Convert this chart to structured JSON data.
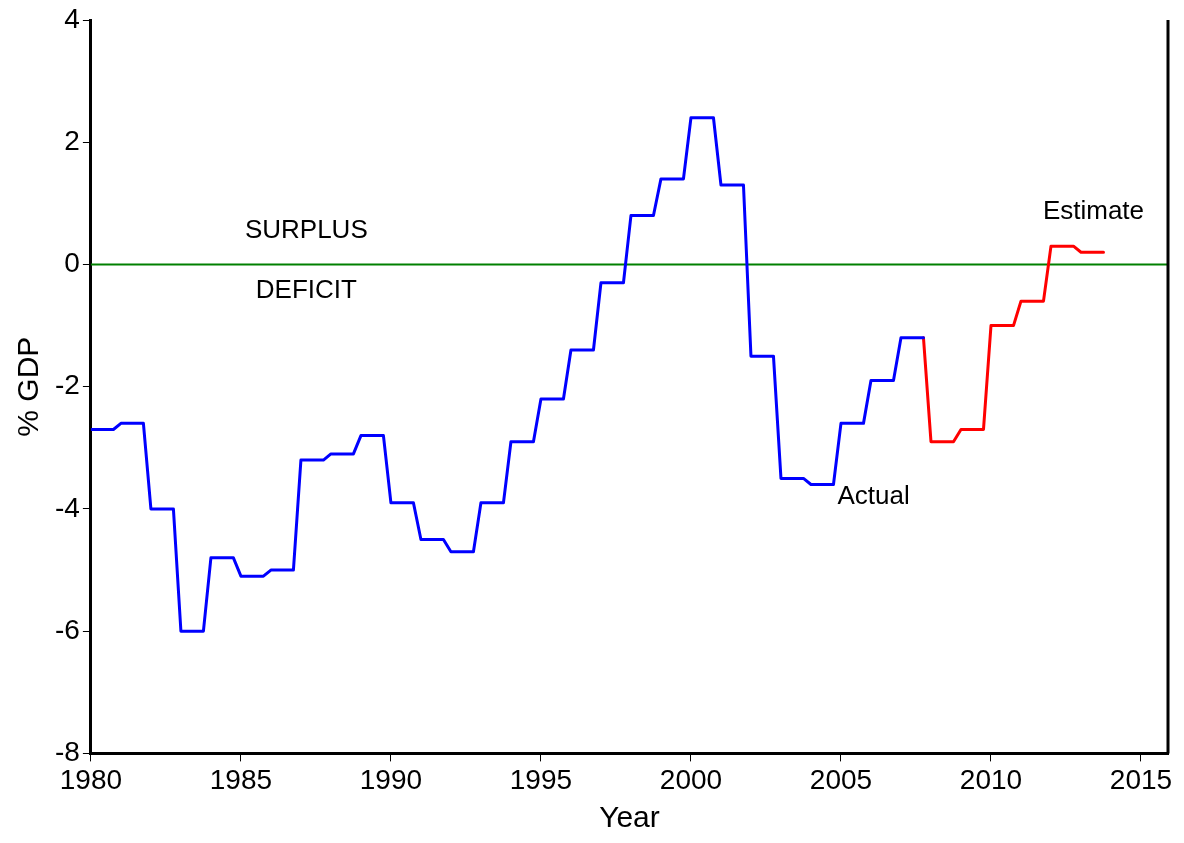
{
  "chart_data": {
    "type": "line",
    "xlabel": "Year",
    "ylabel": "% GDP",
    "xlim": [
      1980,
      2015.9
    ],
    "xticks": [
      1980,
      1985,
      1990,
      1995,
      2000,
      2005,
      2010,
      2015
    ],
    "ylim": [
      -8,
      4
    ],
    "yticks": [
      -8,
      -6,
      -4,
      -2,
      0,
      2,
      4
    ],
    "grid": false,
    "legend": false,
    "marker": "none",
    "line_style": "solid",
    "series": [
      {
        "name": "Actual",
        "color": "#0000ff",
        "x": [
          1980,
          1980.75,
          1981,
          1981.75,
          1982,
          1982.75,
          1983,
          1983.75,
          1984,
          1984.75,
          1985,
          1985.75,
          1986,
          1986.75,
          1987,
          1987.75,
          1988,
          1988.75,
          1989,
          1989.75,
          1990,
          1990.75,
          1991,
          1991.75,
          1992,
          1992.75,
          1993,
          1993.75,
          1994,
          1994.75,
          1995,
          1995.75,
          1996,
          1996.75,
          1997,
          1997.75,
          1998,
          1998.75,
          1999,
          1999.75,
          2000,
          2000.75,
          2001,
          2001.75,
          2002,
          2002.75,
          2003,
          2003.75,
          2004,
          2004.75,
          2005,
          2005.75,
          2006,
          2006.75,
          2007,
          2007.75
        ],
        "values": [
          -2.7,
          -2.7,
          -2.6,
          -2.6,
          -4.0,
          -4.0,
          -6.0,
          -6.0,
          -4.8,
          -4.8,
          -5.1,
          -5.1,
          -5.0,
          -5.0,
          -3.2,
          -3.2,
          -3.1,
          -3.1,
          -2.8,
          -2.8,
          -3.9,
          -3.9,
          -4.5,
          -4.5,
          -4.7,
          -4.7,
          -3.9,
          -3.9,
          -2.9,
          -2.9,
          -2.2,
          -2.2,
          -1.4,
          -1.4,
          -0.3,
          -0.3,
          0.8,
          0.8,
          1.4,
          1.4,
          2.4,
          2.4,
          1.3,
          1.3,
          -1.5,
          -1.5,
          -3.5,
          -3.5,
          -3.6,
          -3.6,
          -2.6,
          -2.6,
          -1.9,
          -1.9,
          -1.2,
          -1.2
        ]
      },
      {
        "name": "Estimate",
        "color": "#ff0000",
        "x": [
          2007.75,
          2008,
          2008.75,
          2009,
          2009.75,
          2010,
          2010.75,
          2011,
          2011.75,
          2012,
          2012.75,
          2013,
          2013.75
        ],
        "values": [
          -1.2,
          -2.9,
          -2.9,
          -2.7,
          -2.7,
          -1.0,
          -1.0,
          -0.6,
          -0.6,
          0.3,
          0.3,
          0.2,
          0.2
        ]
      }
    ],
    "ref_lines": [
      {
        "axis": "y",
        "value": 0,
        "color": "#008000"
      }
    ],
    "annotations": [
      "SURPLUS",
      "DEFICIT"
    ]
  }
}
